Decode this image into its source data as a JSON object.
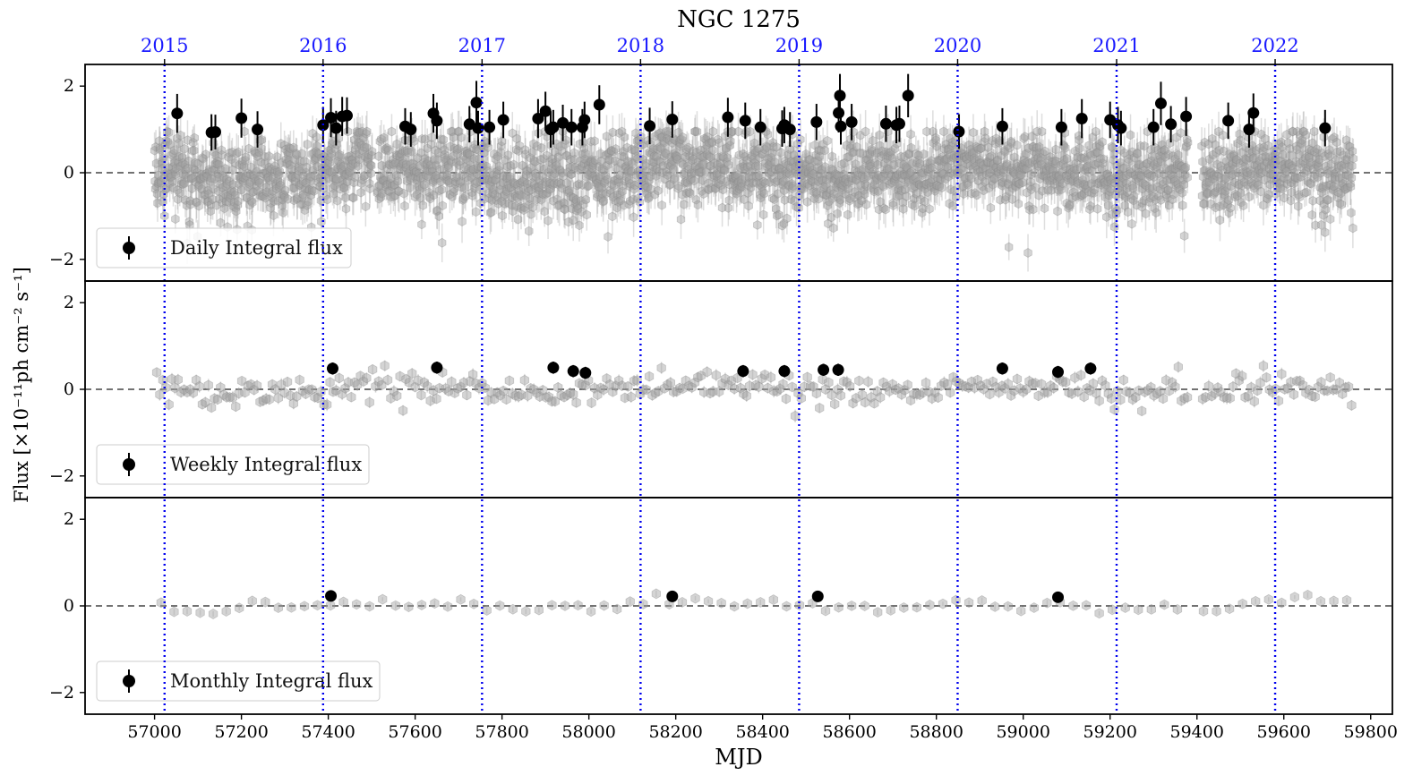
{
  "chart_data": {
    "type": "scatter",
    "title": "NGC 1275",
    "xlabel": "MJD",
    "ylabel": "Flux [×10⁻¹¹ph cm⁻² s⁻¹]",
    "xlim": [
      56840,
      59850
    ],
    "ylim": [
      -2.5,
      2.5
    ],
    "x_ticks": [
      57000,
      57200,
      57400,
      57600,
      57800,
      58000,
      58200,
      58400,
      58600,
      58800,
      59000,
      59200,
      59400,
      59600,
      59800
    ],
    "y_ticks": [
      -2,
      0,
      2
    ],
    "y_tick_labels": [
      "−2",
      "0",
      "2"
    ],
    "grid": false,
    "zero_reference_line": {
      "y": 0,
      "style": "dashed",
      "color": "#444444"
    },
    "year_markers": [
      {
        "label": "2015",
        "mjd": 57023
      },
      {
        "label": "2016",
        "mjd": 57388
      },
      {
        "label": "2017",
        "mjd": 57754
      },
      {
        "label": "2018",
        "mjd": 58119
      },
      {
        "label": "2019",
        "mjd": 58484
      },
      {
        "label": "2020",
        "mjd": 58849
      },
      {
        "label": "2021",
        "mjd": 59215
      },
      {
        "label": "2022",
        "mjd": 59580
      }
    ],
    "year_marker_color": "#0000ee",
    "background_points_color": "#a0a0a0",
    "highlight_points_color": "#000000",
    "panels": [
      {
        "legend": "Daily Integral flux",
        "legend_position": "lower-left",
        "highlight_points": [
          {
            "x": 57052,
            "y": 1.37,
            "err": 0.45
          },
          {
            "x": 57131,
            "y": 0.93,
            "err": 0.42
          },
          {
            "x": 57140,
            "y": 0.94,
            "err": 0.4
          },
          {
            "x": 57200,
            "y": 1.26,
            "err": 0.45
          },
          {
            "x": 57237,
            "y": 1.0,
            "err": 0.42
          },
          {
            "x": 57388,
            "y": 1.1,
            "err": 0.42
          },
          {
            "x": 57406,
            "y": 1.27,
            "err": 0.45
          },
          {
            "x": 57418,
            "y": 1.03,
            "err": 0.4
          },
          {
            "x": 57432,
            "y": 1.3,
            "err": 0.45
          },
          {
            "x": 57443,
            "y": 1.32,
            "err": 0.42
          },
          {
            "x": 57577,
            "y": 1.07,
            "err": 0.42
          },
          {
            "x": 57590,
            "y": 1.0,
            "err": 0.4
          },
          {
            "x": 57642,
            "y": 1.37,
            "err": 0.45
          },
          {
            "x": 57650,
            "y": 1.2,
            "err": 0.42
          },
          {
            "x": 57725,
            "y": 1.12,
            "err": 0.42
          },
          {
            "x": 57741,
            "y": 1.62,
            "err": 0.5
          },
          {
            "x": 57745,
            "y": 1.03,
            "err": 0.4
          },
          {
            "x": 57771,
            "y": 1.05,
            "err": 0.4
          },
          {
            "x": 57803,
            "y": 1.22,
            "err": 0.42
          },
          {
            "x": 57883,
            "y": 1.25,
            "err": 0.45
          },
          {
            "x": 57900,
            "y": 1.42,
            "err": 0.45
          },
          {
            "x": 57912,
            "y": 1.0,
            "err": 0.42
          },
          {
            "x": 57918,
            "y": 1.05,
            "err": 0.4
          },
          {
            "x": 57940,
            "y": 1.15,
            "err": 0.42
          },
          {
            "x": 57960,
            "y": 1.05,
            "err": 0.42
          },
          {
            "x": 57985,
            "y": 1.05,
            "err": 0.42
          },
          {
            "x": 57990,
            "y": 1.22,
            "err": 0.42
          },
          {
            "x": 58024,
            "y": 1.57,
            "err": 0.45
          },
          {
            "x": 58140,
            "y": 1.08,
            "err": 0.42
          },
          {
            "x": 58192,
            "y": 1.23,
            "err": 0.42
          },
          {
            "x": 58320,
            "y": 1.28,
            "err": 0.45
          },
          {
            "x": 58360,
            "y": 1.2,
            "err": 0.42
          },
          {
            "x": 58395,
            "y": 1.05,
            "err": 0.42
          },
          {
            "x": 58445,
            "y": 1.02,
            "err": 0.42
          },
          {
            "x": 58450,
            "y": 1.1,
            "err": 0.42
          },
          {
            "x": 58463,
            "y": 1.0,
            "err": 0.4
          },
          {
            "x": 58524,
            "y": 1.17,
            "err": 0.42
          },
          {
            "x": 58575,
            "y": 1.38,
            "err": 0.45
          },
          {
            "x": 58578,
            "y": 1.78,
            "err": 0.5
          },
          {
            "x": 58580,
            "y": 1.07,
            "err": 0.42
          },
          {
            "x": 58605,
            "y": 1.17,
            "err": 0.42
          },
          {
            "x": 58684,
            "y": 1.13,
            "err": 0.42
          },
          {
            "x": 58708,
            "y": 1.1,
            "err": 0.42
          },
          {
            "x": 58715,
            "y": 1.13,
            "err": 0.42
          },
          {
            "x": 58735,
            "y": 1.78,
            "err": 0.5
          },
          {
            "x": 58852,
            "y": 0.95,
            "err": 0.4
          },
          {
            "x": 58952,
            "y": 1.07,
            "err": 0.42
          },
          {
            "x": 59088,
            "y": 1.05,
            "err": 0.42
          },
          {
            "x": 59135,
            "y": 1.25,
            "err": 0.45
          },
          {
            "x": 59200,
            "y": 1.22,
            "err": 0.42
          },
          {
            "x": 59218,
            "y": 1.1,
            "err": 0.42
          },
          {
            "x": 59225,
            "y": 1.03,
            "err": 0.4
          },
          {
            "x": 59300,
            "y": 1.05,
            "err": 0.42
          },
          {
            "x": 59317,
            "y": 1.6,
            "err": 0.5
          },
          {
            "x": 59340,
            "y": 1.12,
            "err": 0.42
          },
          {
            "x": 59375,
            "y": 1.3,
            "err": 0.45
          },
          {
            "x": 59472,
            "y": 1.2,
            "err": 0.42
          },
          {
            "x": 59520,
            "y": 1.0,
            "err": 0.42
          },
          {
            "x": 59530,
            "y": 1.38,
            "err": 0.45
          },
          {
            "x": 59695,
            "y": 1.03,
            "err": 0.42
          }
        ],
        "background": {
          "cadence_days": 1,
          "x_range": [
            57000,
            59760
          ],
          "gaps": [
            [
              57502,
              57512
            ],
            [
              59380,
              59410
            ]
          ],
          "scatter": 0.45,
          "typical_err": 0.4
        }
      },
      {
        "legend": "Weekly Integral flux",
        "legend_position": "lower-left",
        "highlight_points": [
          {
            "x": 57410,
            "y": 0.48,
            "err": 0.14
          },
          {
            "x": 57650,
            "y": 0.5,
            "err": 0.14
          },
          {
            "x": 57918,
            "y": 0.5,
            "err": 0.14
          },
          {
            "x": 57964,
            "y": 0.42,
            "err": 0.14
          },
          {
            "x": 57992,
            "y": 0.38,
            "err": 0.14
          },
          {
            "x": 58355,
            "y": 0.42,
            "err": 0.14
          },
          {
            "x": 58450,
            "y": 0.42,
            "err": 0.14
          },
          {
            "x": 58540,
            "y": 0.45,
            "err": 0.14
          },
          {
            "x": 58574,
            "y": 0.45,
            "err": 0.14
          },
          {
            "x": 58952,
            "y": 0.48,
            "err": 0.14
          },
          {
            "x": 59080,
            "y": 0.4,
            "err": 0.14
          },
          {
            "x": 59155,
            "y": 0.48,
            "err": 0.14
          }
        ],
        "background": {
          "cadence_days": 7,
          "x_range": [
            57005,
            59760
          ],
          "gaps": [
            [
              59380,
              59410
            ]
          ],
          "scatter": 0.17,
          "typical_err": 0.12
        }
      },
      {
        "legend": "Monthly Integral flux",
        "legend_position": "lower-left",
        "highlight_points": [
          {
            "x": 57406,
            "y": 0.23,
            "err": 0.06
          },
          {
            "x": 58192,
            "y": 0.22,
            "err": 0.06
          },
          {
            "x": 58527,
            "y": 0.22,
            "err": 0.06
          },
          {
            "x": 59080,
            "y": 0.2,
            "err": 0.06
          }
        ],
        "background": {
          "cadence_days": 30,
          "x_range": [
            57015,
            59750
          ],
          "gaps": [
            [
              59380,
              59410
            ]
          ],
          "scatter": 0.07,
          "typical_err": 0.06
        }
      }
    ]
  }
}
